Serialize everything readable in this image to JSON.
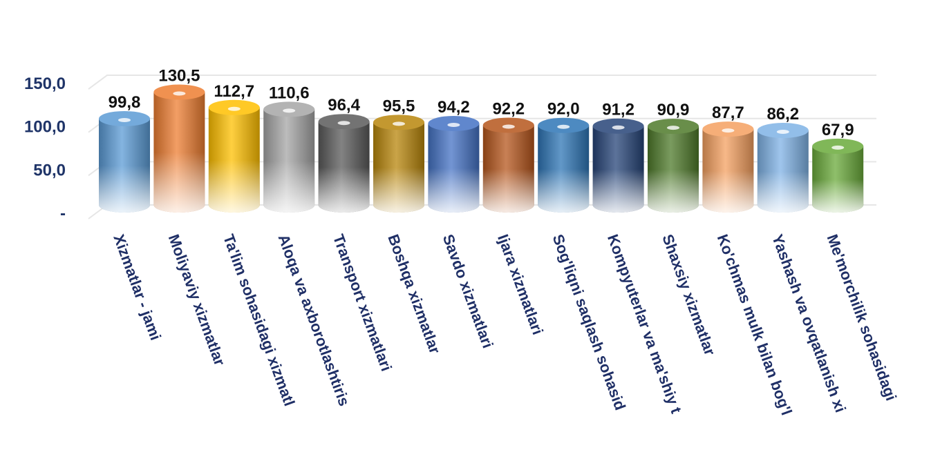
{
  "chart_data": {
    "type": "bar",
    "title": "",
    "xlabel": "",
    "ylabel": "",
    "ylim": [
      0,
      150
    ],
    "y_ticks": [
      {
        "value": 0,
        "label": "-"
      },
      {
        "value": 50,
        "label": "50,0"
      },
      {
        "value": 100,
        "label": "100,0"
      },
      {
        "value": 150,
        "label": "150,0"
      }
    ],
    "grid": true,
    "legend": "none",
    "categories": [
      "Xizmatlar - jami",
      "Moliyaviy xizmatlar",
      "Ta'lim sohasidagi xizmatl",
      "Aloqa va axborotlashtiris",
      "Transport xizmatlari",
      "Boshqa xizmatlar",
      "Savdo xizmatlari",
      "Ijara xizmatlari",
      "Sog'liqni saqlash sohasid",
      "Kompyuterlar va ma'shiy t",
      "Shaxsiy xizmatlar",
      "Ko'chmas mulk bilan bog'l",
      "Yashash va ovqatlanish xi",
      "Me'morchilik  sohasidagi"
    ],
    "values": [
      99.8,
      130.5,
      112.7,
      110.6,
      96.4,
      95.5,
      94.2,
      92.2,
      92.0,
      91.2,
      90.9,
      87.7,
      86.2,
      67.9
    ],
    "value_labels": [
      "99,8",
      "130,5",
      "112,7",
      "110,6",
      "96,4",
      "95,5",
      "94,2",
      "92,2",
      "92,0",
      "91,2",
      "90,9",
      "87,7",
      "86,2",
      "67,9"
    ],
    "colors": [
      "#5b9bd5",
      "#ed7d31",
      "#ffc000",
      "#a5a5a5",
      "#5a5a5a",
      "#b8860b",
      "#4472c4",
      "#b5561c",
      "#2e75b6",
      "#264478",
      "#4e7a2a",
      "#f4a060",
      "#7fb2e5",
      "#6aaa3a"
    ]
  }
}
